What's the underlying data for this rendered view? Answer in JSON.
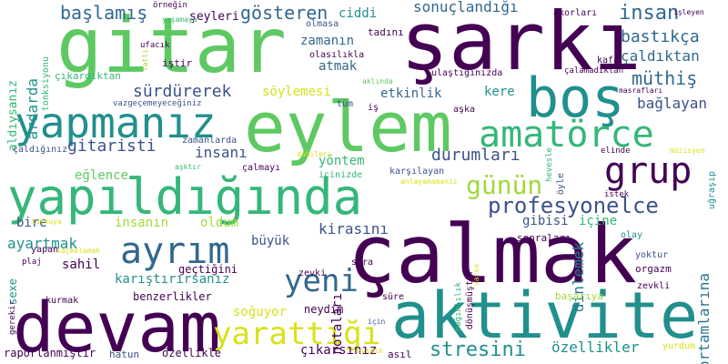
{
  "palette": {
    "dark_purple": "#440154",
    "indigo": "#3b528b",
    "slate_blue": "#31688e",
    "teal": "#21908d",
    "green": "#35b779",
    "light_green": "#5ec962",
    "lime": "#a0da39",
    "yellow": "#fde725"
  },
  "words": [
    {
      "text": "gitar",
      "color": "#5ec962"
    },
    {
      "text": "şarkı",
      "color": "#440154"
    },
    {
      "text": "eylem",
      "color": "#5ec962"
    },
    {
      "text": "yapıldığında",
      "color": "#35b779"
    },
    {
      "text": "çalmak",
      "color": "#440154"
    },
    {
      "text": "devam",
      "color": "#440154"
    },
    {
      "text": "aktivite",
      "color": "#21908d"
    },
    {
      "text": "yapmanız",
      "color": "#21908d"
    },
    {
      "text": "boş",
      "color": "#21908d"
    },
    {
      "text": "amatörce",
      "color": "#35b779"
    },
    {
      "text": "grup",
      "color": "#440154"
    },
    {
      "text": "ayrım",
      "color": "#31688e"
    },
    {
      "text": "yeni",
      "color": "#31688e"
    },
    {
      "text": "yarattığı",
      "color": "#d8e219"
    },
    {
      "text": "profesyonelce",
      "color": "#3b528b"
    },
    {
      "text": "günün",
      "color": "#a0da39"
    },
    {
      "text": "stresini",
      "color": "#21908d"
    },
    {
      "text": "başlamış",
      "color": "#31688e"
    },
    {
      "text": "gösteren",
      "color": "#31688e"
    },
    {
      "text": "sonuçlandığı",
      "color": "#31688e"
    },
    {
      "text": "insan",
      "color": "#31688e"
    },
    {
      "text": "bastıkça",
      "color": "#31688e"
    },
    {
      "text": "çaldıktan",
      "color": "#31688e"
    },
    {
      "text": "müthiş",
      "color": "#31688e"
    },
    {
      "text": "bağlayan",
      "color": "#3b528b"
    },
    {
      "text": "sürdürerek",
      "color": "#3b528b"
    },
    {
      "text": "gitaristi",
      "color": "#3b528b"
    },
    {
      "text": "durumları",
      "color": "#3b528b"
    },
    {
      "text": "insanı",
      "color": "#3b528b"
    },
    {
      "text": "kirasını",
      "color": "#3b528b"
    },
    {
      "text": "dinlemek",
      "color": "#2a788e"
    },
    {
      "text": "ortamlarına",
      "color": "#2a788e"
    },
    {
      "text": "özellikler",
      "color": "#21908d"
    },
    {
      "text": "ayartmak",
      "color": "#21908d"
    },
    {
      "text": "karıştırırsanız",
      "color": "#21908d"
    },
    {
      "text": "ardarda",
      "color": "#21908d"
    },
    {
      "text": "ciddi",
      "color": "#21908d"
    },
    {
      "text": "zamanın",
      "color": "#31688e"
    },
    {
      "text": "atmak",
      "color": "#31688e"
    },
    {
      "text": "kere",
      "color": "#21908d"
    },
    {
      "text": "söylemesi",
      "color": "#d8e219"
    },
    {
      "text": "etkinlik",
      "color": "#31688e"
    },
    {
      "text": "yöntem",
      "color": "#35b779"
    },
    {
      "text": "eğlence",
      "color": "#5ec962"
    },
    {
      "text": "bire",
      "color": "#3b528b"
    },
    {
      "text": "insanın",
      "color": "#a0da39"
    },
    {
      "text": "oldum",
      "color": "#a0da39"
    },
    {
      "text": "gibisi",
      "color": "#3b528b"
    },
    {
      "text": "içine",
      "color": "#35b779"
    },
    {
      "text": "büyük",
      "color": "#3b528b"
    },
    {
      "text": "sahil",
      "color": "#440154"
    },
    {
      "text": "geçtiğini",
      "color": "#440154"
    },
    {
      "text": "benzerlikler",
      "color": "#440154"
    },
    {
      "text": "soğuyor",
      "color": "#d8e219"
    },
    {
      "text": "notaları",
      "color": "#440154"
    },
    {
      "text": "neydim",
      "color": "#440154"
    },
    {
      "text": "çıkarsınız",
      "color": "#440154"
    },
    {
      "text": "özellikle",
      "color": "#440154"
    },
    {
      "text": "hatun",
      "color": "#3b528b"
    },
    {
      "text": "raporlanmıştır",
      "color": "#440154"
    },
    {
      "text": "asıl",
      "color": "#440154"
    },
    {
      "text": "aldıysanız",
      "color": "#35b779"
    },
    {
      "text": "tonksiyonu",
      "color": "#35b779"
    },
    {
      "text": "çıkardıktan",
      "color": "#35b779"
    },
    {
      "text": "ufacık",
      "color": "#440154"
    },
    {
      "text": "şeyleri",
      "color": "#440154"
    },
    {
      "text": "örneğin",
      "color": "#440154"
    },
    {
      "text": "yaşamaya",
      "color": "#35b779"
    },
    {
      "text": "olmasa",
      "color": "#3b528b"
    },
    {
      "text": "olasılıkla",
      "color": "#440154"
    },
    {
      "text": "tadını",
      "color": "#440154"
    },
    {
      "text": "akorları",
      "color": "#440154"
    },
    {
      "text": "işleyen",
      "color": "#440154"
    },
    {
      "text": "kafa",
      "color": "#440154"
    },
    {
      "text": "çalamadıktan",
      "color": "#440154"
    },
    {
      "text": "masrafları",
      "color": "#440154"
    },
    {
      "text": "ulaştığınızda",
      "color": "#440154"
    },
    {
      "text": "aklında",
      "color": "#5ec962"
    },
    {
      "text": "tüm",
      "color": "#3b528b"
    },
    {
      "text": "iş",
      "color": "#440154"
    },
    {
      "text": "aşka",
      "color": "#440154"
    },
    {
      "text": "iştir",
      "color": "#440154"
    },
    {
      "text": "tatlı",
      "color": "#a0da39"
    },
    {
      "text": "vazgeçemeyeceğiniz",
      "color": "#3b528b"
    },
    {
      "text": "çaldığınız",
      "color": "#3b528b"
    },
    {
      "text": "zamanlarda",
      "color": "#3b528b"
    },
    {
      "text": "dahileri",
      "color": "#d8e219"
    },
    {
      "text": "çalmayı",
      "color": "#440154"
    },
    {
      "text": "aşktır",
      "color": "#35b779"
    },
    {
      "text": "içinizde",
      "color": "#35b779"
    },
    {
      "text": "karşılayan",
      "color": "#3b528b"
    },
    {
      "text": "anlayamamanız",
      "color": "#d8e219"
    },
    {
      "text": "hevesle",
      "color": "#35b779"
    },
    {
      "text": "öyle",
      "color": "#3b528b"
    },
    {
      "text": "elinde",
      "color": "#440154"
    },
    {
      "text": "müzisyen",
      "color": "#d8e219"
    },
    {
      "text": "uğraşıp",
      "color": "#21908d"
    },
    {
      "text": "istek",
      "color": "#440154"
    },
    {
      "text": "olay",
      "color": "#21908d"
    },
    {
      "text": "sonraları",
      "color": "#440154"
    },
    {
      "text": "dönüşmüştür",
      "color": "#440154"
    },
    {
      "text": "varsa",
      "color": "#d8e219"
    },
    {
      "text": "yoktur",
      "color": "#3b528b"
    },
    {
      "text": "orgazm",
      "color": "#440154"
    },
    {
      "text": "zevkli",
      "color": "#440154"
    },
    {
      "text": "zevki",
      "color": "#440154"
    },
    {
      "text": "sıra",
      "color": "#440154"
    },
    {
      "text": "bağımlılık",
      "color": "#35b779"
    },
    {
      "text": "başarıya",
      "color": "#a0da39"
    },
    {
      "text": "süre",
      "color": "#440154"
    },
    {
      "text": "yurdum",
      "color": "#d8e219"
    },
    {
      "text": "için",
      "color": "#3b528b"
    },
    {
      "text": "evimin",
      "color": "#d8e219"
    },
    {
      "text": "tutkuya",
      "color": "#d8e219"
    },
    {
      "text": "yapan",
      "color": "#440154"
    },
    {
      "text": "saçmalamak",
      "color": "#d8e219"
    },
    {
      "text": "plaj",
      "color": "#440154"
    },
    {
      "text": "sexe",
      "color": "#21908d"
    },
    {
      "text": "gerekir",
      "color": "#440154"
    },
    {
      "text": "kurmak",
      "color": "#440154"
    }
  ]
}
